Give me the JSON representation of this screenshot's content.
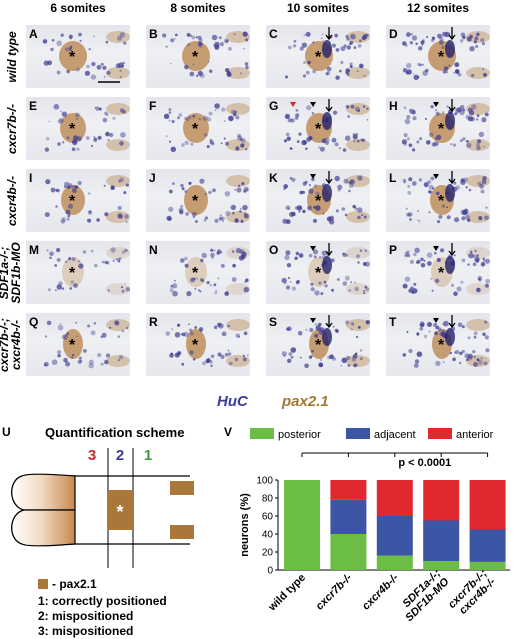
{
  "column_headers": [
    "6 somites",
    "8 somites",
    "10 somites",
    "12 somites"
  ],
  "row_labels": [
    {
      "lines": [
        "wild type"
      ]
    },
    {
      "lines": [
        "cxcr7b-/-"
      ]
    },
    {
      "lines": [
        "cxcr4b-/-"
      ]
    },
    {
      "lines": [
        "SDF1a-/-;",
        "SDF1b-MO"
      ]
    },
    {
      "lines": [
        "cxcr7b-/-;",
        "cxcr4b-/-"
      ]
    }
  ],
  "panel_letters": [
    "A",
    "B",
    "C",
    "D",
    "E",
    "F",
    "G",
    "H",
    "I",
    "J",
    "K",
    "L",
    "M",
    "N",
    "O",
    "P",
    "Q",
    "R",
    "S",
    "T"
  ],
  "panel_asterisk": "*",
  "stain_legend": {
    "huc": "HuC",
    "pax": "pax2.1"
  },
  "colors": {
    "huc": "#3b3b9a",
    "pax": "#a07a30",
    "posterior": "#6cbd45",
    "adjacent": "#3c55a5",
    "anterior": "#e0282e"
  },
  "scheme": {
    "panel_letter": "U",
    "title": "Quantification scheme",
    "zone_numbers": [
      "3",
      "2",
      "1"
    ],
    "asterisk": "*",
    "legend_text": "- pax2.1",
    "notes": [
      "1: correctly positioned",
      "2: mispositioned",
      "3: mispositioned"
    ]
  },
  "chart_panel_letter": "V",
  "chart_data": {
    "type": "bar",
    "stacked": true,
    "categories": [
      "wild type",
      "cxcr7b-/-",
      "cxcr4b-/-",
      "SDF1a-/-;\nSDF1b-MO",
      "cxcr7b-/-;\ncxcr4b-/-"
    ],
    "series": [
      {
        "name": "posterior",
        "values": [
          100,
          40,
          16,
          10,
          9
        ]
      },
      {
        "name": "adjacent",
        "values": [
          0,
          38,
          44,
          45,
          36
        ]
      },
      {
        "name": "anterior",
        "values": [
          0,
          22,
          40,
          45,
          55
        ]
      }
    ],
    "ylabel": "neurons (%)",
    "ylim": [
      0,
      100
    ],
    "yticks": [
      0,
      20,
      40,
      60,
      80,
      100
    ],
    "legend_position": "top",
    "annotation": "p < 0.0001"
  }
}
